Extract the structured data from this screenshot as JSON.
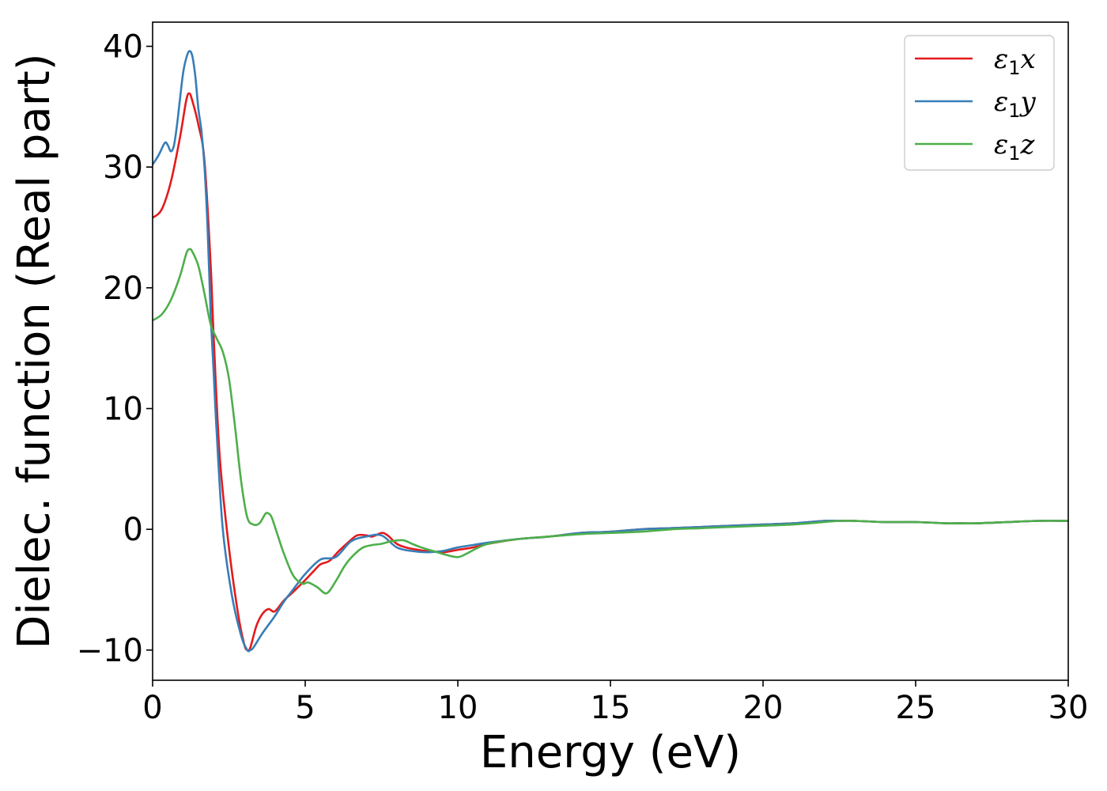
{
  "chart_data": {
    "type": "line",
    "title": "",
    "xlabel": "Energy (eV)",
    "ylabel": "Dielec. function (Real part)",
    "xlim": [
      0,
      30
    ],
    "ylim": [
      -12.5,
      42
    ],
    "xticks": [
      0,
      5,
      10,
      15,
      20,
      25,
      30
    ],
    "xtick_labels": [
      "0",
      "5",
      "10",
      "15",
      "20",
      "25",
      "30"
    ],
    "yticks": [
      -10,
      0,
      10,
      20,
      30,
      40
    ],
    "ytick_labels": [
      "−10",
      "0",
      "10",
      "20",
      "30",
      "40"
    ],
    "grid": false,
    "legend_position": "top-right",
    "series": [
      {
        "name": "ε₁x",
        "label_main": "ε",
        "label_sub": "1",
        "label_var": "x",
        "color": "#e41a1c",
        "x": [
          0,
          0.3,
          0.6,
          0.9,
          1.1,
          1.2,
          1.3,
          1.5,
          1.7,
          1.9,
          2.0,
          2.2,
          2.5,
          2.8,
          3.0,
          3.1,
          3.2,
          3.4,
          3.6,
          3.8,
          4.0,
          4.3,
          4.6,
          5.0,
          5.3,
          5.5,
          5.8,
          6.1,
          6.4,
          6.7,
          7.0,
          7.2,
          7.5,
          7.7,
          8.0,
          8.3,
          8.7,
          9.0,
          9.5,
          10.0,
          10.5,
          11.0,
          12.0,
          13.0,
          14.0,
          15.0,
          16.0,
          17.0,
          18.0,
          19.0,
          20.0,
          21.0,
          22.0,
          22.5,
          23.0,
          24.0,
          25.0,
          26.0,
          26.3,
          27.0,
          28.0,
          29.0,
          30.0
        ],
        "y": [
          25.8,
          26.5,
          28.8,
          32.5,
          35.5,
          36.1,
          35.5,
          33.5,
          30.5,
          22.0,
          16.0,
          6.0,
          -1.5,
          -7.0,
          -9.5,
          -10.0,
          -9.8,
          -8.0,
          -7.0,
          -6.6,
          -6.8,
          -5.9,
          -5.2,
          -4.2,
          -3.4,
          -2.9,
          -2.6,
          -1.8,
          -1.1,
          -0.5,
          -0.5,
          -0.6,
          -0.3,
          -0.5,
          -1.2,
          -1.5,
          -1.7,
          -1.8,
          -1.9,
          -1.7,
          -1.5,
          -1.2,
          -0.8,
          -0.6,
          -0.3,
          -0.2,
          0.0,
          0.1,
          0.2,
          0.3,
          0.4,
          0.5,
          0.7,
          0.7,
          0.7,
          0.6,
          0.6,
          0.5,
          0.5,
          0.5,
          0.6,
          0.7,
          0.7
        ]
      },
      {
        "name": "ε₁y",
        "label_main": "ε",
        "label_sub": "1",
        "label_var": "y",
        "color": "#377eb8",
        "x": [
          0,
          0.2,
          0.4,
          0.5,
          0.6,
          0.7,
          0.8,
          0.9,
          1.0,
          1.1,
          1.2,
          1.3,
          1.4,
          1.5,
          1.6,
          1.7,
          1.8,
          1.9,
          2.0,
          2.1,
          2.3,
          2.6,
          2.9,
          3.1,
          3.2,
          3.3,
          3.6,
          4.0,
          4.3,
          4.6,
          5.0,
          5.5,
          6.0,
          6.5,
          7.0,
          7.5,
          8.0,
          8.5,
          9.0,
          9.5,
          10.0,
          10.5,
          11.0,
          12.0,
          13.0,
          14.0,
          15.0,
          16.0,
          17.0,
          18.0,
          19.0,
          20.0,
          21.0,
          22.0,
          22.5,
          23.0,
          24.0,
          25.0,
          26.0,
          26.3,
          27.0,
          28.0,
          29.0,
          30.0
        ],
        "y": [
          30.2,
          31.0,
          32.0,
          31.8,
          31.3,
          31.8,
          33.5,
          35.7,
          37.8,
          39.0,
          39.6,
          39.2,
          37.5,
          34.8,
          33.0,
          30.0,
          25.0,
          18.0,
          13.0,
          8.0,
          0.0,
          -5.5,
          -8.8,
          -10.0,
          -10.0,
          -9.8,
          -8.6,
          -7.2,
          -6.0,
          -5.0,
          -3.7,
          -2.5,
          -2.3,
          -1.0,
          -0.6,
          -0.5,
          -1.5,
          -1.8,
          -1.9,
          -1.8,
          -1.5,
          -1.3,
          -1.1,
          -0.8,
          -0.6,
          -0.3,
          -0.2,
          0.0,
          0.1,
          0.2,
          0.3,
          0.4,
          0.5,
          0.7,
          0.7,
          0.7,
          0.6,
          0.6,
          0.5,
          0.5,
          0.5,
          0.6,
          0.7,
          0.7
        ]
      },
      {
        "name": "ε₁z",
        "label_main": "ε",
        "label_sub": "1",
        "label_var": "z",
        "color": "#4daf4a",
        "x": [
          0,
          0.3,
          0.6,
          0.9,
          1.1,
          1.2,
          1.3,
          1.5,
          1.7,
          1.9,
          2.1,
          2.3,
          2.5,
          2.7,
          2.9,
          3.1,
          3.3,
          3.5,
          3.7,
          3.8,
          3.9,
          4.1,
          4.3,
          4.6,
          4.9,
          5.1,
          5.4,
          5.7,
          6.0,
          6.3,
          6.6,
          6.9,
          7.2,
          7.5,
          7.8,
          8.2,
          8.5,
          8.8,
          9.2,
          9.6,
          10.0,
          10.3,
          10.6,
          11.0,
          12.0,
          13.0,
          14.0,
          15.0,
          16.0,
          17.0,
          18.0,
          19.0,
          20.0,
          21.0,
          22.0,
          22.5,
          23.0,
          24.0,
          25.0,
          26.0,
          26.3,
          27.0,
          28.0,
          29.0,
          30.0
        ],
        "y": [
          17.3,
          17.8,
          19.0,
          21.0,
          22.8,
          23.2,
          23.0,
          21.8,
          19.5,
          17.0,
          15.8,
          14.7,
          12.5,
          8.5,
          4.0,
          1.0,
          0.4,
          0.5,
          1.3,
          1.3,
          1.0,
          -0.5,
          -2.0,
          -3.8,
          -4.5,
          -4.4,
          -4.8,
          -5.3,
          -4.3,
          -3.0,
          -2.1,
          -1.5,
          -1.3,
          -1.2,
          -1.0,
          -0.9,
          -1.2,
          -1.5,
          -1.8,
          -2.1,
          -2.3,
          -2.0,
          -1.6,
          -1.2,
          -0.8,
          -0.6,
          -0.4,
          -0.3,
          -0.2,
          0.0,
          0.1,
          0.2,
          0.3,
          0.4,
          0.6,
          0.7,
          0.7,
          0.6,
          0.6,
          0.5,
          0.5,
          0.5,
          0.6,
          0.7,
          0.7
        ]
      }
    ]
  }
}
